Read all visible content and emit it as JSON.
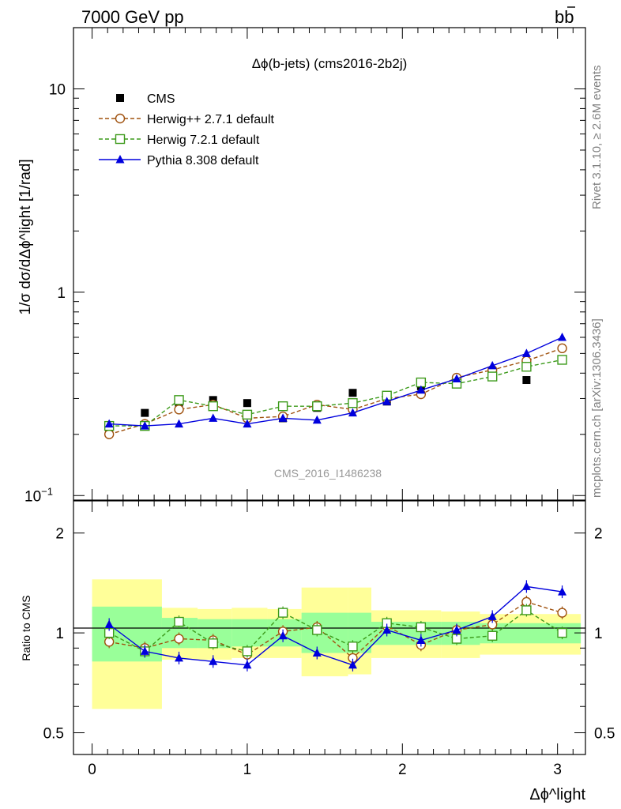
{
  "header": {
    "energy_label": "7000 GeV pp",
    "process_label": "bb"
  },
  "side_text": {
    "rivet": "Rivet 3.1.10, ≥ 2.6M events",
    "mcplots": "mcplots.cern.ch [arXiv:1306.3436]"
  },
  "colors": {
    "cms": "#000000",
    "herwigpp": "#a0520f",
    "herwig7": "#3c9a1a",
    "pythia": "#0000dd",
    "band_outer": "#ffff99",
    "band_inner": "#99ff99"
  },
  "chart_data": [
    {
      "type": "scatter",
      "title": "Δϕ(b-jets) (cms2016-2b2j)",
      "watermark": "CMS_2016_I1486238",
      "ylabel": "1/σ dσ/dΔϕ^light [1/rad]",
      "yscale": "log",
      "ylim": [
        0.095,
        20
      ],
      "xlim": [
        -0.12,
        3.18
      ],
      "yticks": [
        "10^-1",
        "1",
        "10"
      ],
      "legend_position": "top-left",
      "x": [
        0.11,
        0.34,
        0.56,
        0.78,
        1.0,
        1.23,
        1.45,
        1.68,
        1.9,
        2.12,
        2.35,
        2.58,
        2.8,
        3.03
      ],
      "series": [
        {
          "name": "CMS",
          "marker": "square",
          "values": [
            0.215,
            0.255,
            0.275,
            0.295,
            0.285,
            0.24,
            0.27,
            0.32,
            0.29,
            0.345,
            0.37,
            0.395,
            0.37,
            0.465
          ]
        },
        {
          "name": "Herwig++ 2.7.1 default",
          "marker": "open-circle",
          "line": "dashed",
          "values": [
            0.2,
            0.225,
            0.265,
            0.28,
            0.24,
            0.245,
            0.28,
            0.265,
            0.3,
            0.315,
            0.38,
            0.415,
            0.46,
            0.53
          ]
        },
        {
          "name": "Herwig 7.2.1 default",
          "marker": "open-square",
          "line": "dashed",
          "values": [
            0.22,
            0.22,
            0.295,
            0.275,
            0.25,
            0.275,
            0.275,
            0.285,
            0.31,
            0.36,
            0.355,
            0.385,
            0.43,
            0.465
          ]
        },
        {
          "name": "Pythia 8.308 default",
          "marker": "triangle",
          "line": "solid",
          "values": [
            0.225,
            0.22,
            0.225,
            0.24,
            0.225,
            0.24,
            0.235,
            0.255,
            0.29,
            0.33,
            0.375,
            0.435,
            0.5,
            0.6
          ]
        }
      ]
    },
    {
      "type": "scatter",
      "ylabel": "Ratio to CMS",
      "xlabel": "Δϕ^light",
      "yscale": "log",
      "ylim": [
        0.43,
        2.5
      ],
      "xlim": [
        -0.12,
        3.18
      ],
      "yticks": [
        0.5,
        1,
        2
      ],
      "xticks": [
        0,
        1,
        2,
        3
      ],
      "band_bins": [
        {
          "lo": 0.0,
          "hi": 0.45,
          "outer": [
            0.59,
            1.45
          ],
          "inner": [
            0.82,
            1.2
          ]
        },
        {
          "lo": 0.45,
          "hi": 0.68,
          "outer": [
            0.83,
            1.19
          ],
          "inner": [
            0.9,
            1.11
          ]
        },
        {
          "lo": 0.68,
          "hi": 0.9,
          "outer": [
            0.83,
            1.18
          ],
          "inner": [
            0.9,
            1.1
          ]
        },
        {
          "lo": 0.9,
          "hi": 1.13,
          "outer": [
            0.84,
            1.19
          ],
          "inner": [
            0.91,
            1.1
          ]
        },
        {
          "lo": 1.13,
          "hi": 1.35,
          "outer": [
            0.84,
            1.18
          ],
          "inner": [
            0.91,
            1.1
          ]
        },
        {
          "lo": 1.35,
          "hi": 1.65,
          "outer": [
            0.74,
            1.37
          ],
          "inner": [
            0.87,
            1.15
          ]
        },
        {
          "lo": 1.65,
          "hi": 1.8,
          "outer": [
            0.75,
            1.37
          ],
          "inner": [
            0.87,
            1.15
          ]
        },
        {
          "lo": 1.8,
          "hi": 2.25,
          "outer": [
            0.84,
            1.17
          ],
          "inner": [
            0.92,
            1.08
          ]
        },
        {
          "lo": 2.25,
          "hi": 2.5,
          "outer": [
            0.84,
            1.16
          ],
          "inner": [
            0.92,
            1.08
          ]
        },
        {
          "lo": 2.5,
          "hi": 3.15,
          "outer": [
            0.86,
            1.14
          ],
          "inner": [
            0.93,
            1.07
          ]
        }
      ],
      "x": [
        0.11,
        0.34,
        0.56,
        0.78,
        1.0,
        1.23,
        1.45,
        1.68,
        1.9,
        2.12,
        2.35,
        2.58,
        2.8,
        3.03
      ],
      "series": [
        {
          "name": "Herwig++ 2.7.1 default",
          "values": [
            0.94,
            0.9,
            0.96,
            0.95,
            0.86,
            1.01,
            1.04,
            0.84,
            1.05,
            0.92,
            1.02,
            1.06,
            1.24,
            1.15
          ]
        },
        {
          "name": "Herwig 7.2.1 default",
          "values": [
            1.0,
            0.88,
            1.08,
            0.93,
            0.88,
            1.15,
            1.02,
            0.91,
            1.07,
            1.04,
            0.96,
            0.98,
            1.17,
            1.0
          ]
        },
        {
          "name": "Pythia 8.308 default",
          "values": [
            1.06,
            0.88,
            0.84,
            0.82,
            0.8,
            0.98,
            0.87,
            0.8,
            1.02,
            0.95,
            1.02,
            1.12,
            1.38,
            1.33
          ]
        }
      ]
    }
  ]
}
